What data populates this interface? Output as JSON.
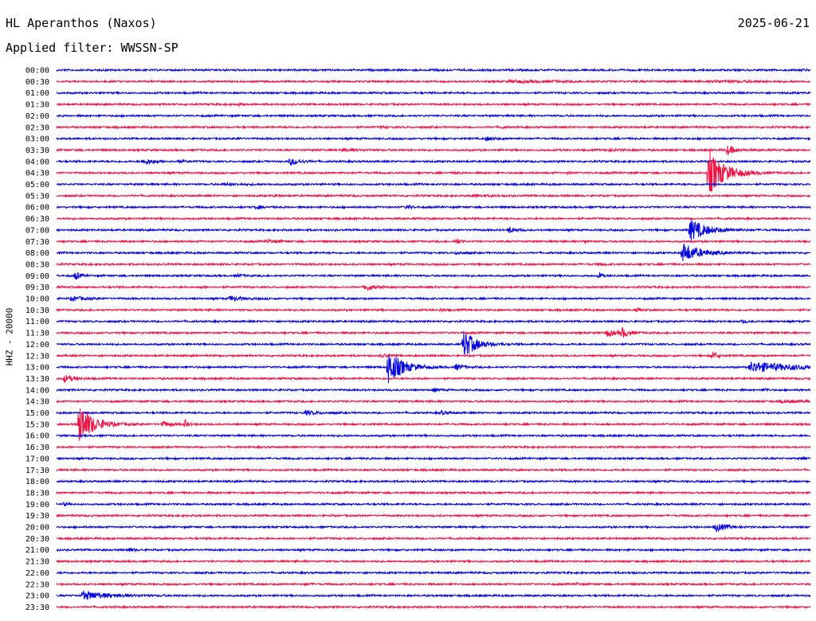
{
  "header": {
    "station": "HL Aperanthos (Naxos)",
    "date": "2025-06-21",
    "filter": "Applied filter: WWSSN-SP"
  },
  "chart_data": {
    "type": "line",
    "ylabel": "HHZ - 20000",
    "trace_colors": [
      "#0000dd",
      "#ee1144"
    ],
    "time_unit": "fraction of 30-minute trace",
    "rows": [
      {
        "label": "00:00",
        "events": [
          {
            "t": 0.5,
            "a": 0.25,
            "d": 0.008
          },
          {
            "t": 0.99,
            "a": 0.2,
            "d": 0.005
          }
        ]
      },
      {
        "label": "00:30",
        "events": [
          {
            "t": 0.6,
            "a": 0.15,
            "d": 0.08
          },
          {
            "t": 0.87,
            "a": 0.15,
            "d": 0.05
          }
        ]
      },
      {
        "label": "01:00",
        "events": []
      },
      {
        "label": "01:30",
        "events": [
          {
            "t": 0.24,
            "a": 0.2,
            "d": 0.006
          },
          {
            "t": 0.77,
            "a": 0.18,
            "d": 0.006
          }
        ]
      },
      {
        "label": "02:00",
        "events": []
      },
      {
        "label": "02:30",
        "events": [
          {
            "t": 0.43,
            "a": 0.15,
            "d": 0.006
          },
          {
            "t": 0.59,
            "a": 0.2,
            "d": 0.004
          }
        ]
      },
      {
        "label": "03:00",
        "events": [
          {
            "t": 0.57,
            "a": 0.3,
            "d": 0.01
          },
          {
            "t": 0.24,
            "a": 0.2,
            "d": 0.003
          }
        ]
      },
      {
        "label": "03:30",
        "events": [
          {
            "t": 0.38,
            "a": 0.2,
            "d": 0.02
          },
          {
            "t": 0.73,
            "a": 0.15,
            "d": 0.02
          },
          {
            "t": 0.89,
            "a": 0.8,
            "d": 0.01
          }
        ]
      },
      {
        "label": "04:00",
        "events": [
          {
            "t": 0.115,
            "a": 0.6,
            "d": 0.012
          },
          {
            "t": 0.31,
            "a": 0.6,
            "d": 0.012
          },
          {
            "t": 0.16,
            "a": 0.25,
            "d": 0.008
          }
        ]
      },
      {
        "label": "04:30",
        "events": [
          {
            "t": 0.865,
            "a": 4.0,
            "d": 0.02
          },
          {
            "t": 0.53,
            "a": 0.2,
            "d": 0.004
          },
          {
            "t": 0.68,
            "a": 0.2,
            "d": 0.004
          }
        ]
      },
      {
        "label": "05:00",
        "events": [
          {
            "t": 0.22,
            "a": 0.15,
            "d": 0.03
          }
        ]
      },
      {
        "label": "05:30",
        "events": [
          {
            "t": 0.29,
            "a": 0.2,
            "d": 0.004
          },
          {
            "t": 0.55,
            "a": 0.15,
            "d": 0.03
          }
        ]
      },
      {
        "label": "06:00",
        "events": [
          {
            "t": 0.265,
            "a": 0.35,
            "d": 0.006
          },
          {
            "t": 0.465,
            "a": 0.3,
            "d": 0.005
          }
        ]
      },
      {
        "label": "06:30",
        "events": []
      },
      {
        "label": "07:00",
        "events": [
          {
            "t": 0.84,
            "a": 2.0,
            "d": 0.02
          },
          {
            "t": 0.6,
            "a": 0.5,
            "d": 0.008
          }
        ]
      },
      {
        "label": "07:30",
        "events": [
          {
            "t": 0.28,
            "a": 0.3,
            "d": 0.01
          },
          {
            "t": 0.53,
            "a": 0.5,
            "d": 0.005
          },
          {
            "t": 0.7,
            "a": 0.3,
            "d": 0.004
          }
        ]
      },
      {
        "label": "08:00",
        "events": [
          {
            "t": 0.83,
            "a": 1.8,
            "d": 0.02
          },
          {
            "t": 0.53,
            "a": 0.3,
            "d": 0.008
          }
        ]
      },
      {
        "label": "08:30",
        "events": [
          {
            "t": 0.72,
            "a": 0.3,
            "d": 0.004
          }
        ]
      },
      {
        "label": "09:00",
        "events": [
          {
            "t": 0.025,
            "a": 0.8,
            "d": 0.005
          },
          {
            "t": 0.24,
            "a": 0.25,
            "d": 0.006
          },
          {
            "t": 0.72,
            "a": 0.5,
            "d": 0.004
          }
        ]
      },
      {
        "label": "09:30",
        "events": [
          {
            "t": 0.41,
            "a": 0.6,
            "d": 0.01
          },
          {
            "t": 0.19,
            "a": 0.2,
            "d": 0.005
          }
        ]
      },
      {
        "label": "10:00",
        "events": [
          {
            "t": 0.02,
            "a": 0.4,
            "d": 0.015
          },
          {
            "t": 0.23,
            "a": 0.5,
            "d": 0.012
          }
        ]
      },
      {
        "label": "10:30",
        "events": [
          {
            "t": 0.51,
            "a": 0.3,
            "d": 0.004
          },
          {
            "t": 0.77,
            "a": 0.3,
            "d": 0.004
          }
        ]
      },
      {
        "label": "11:00",
        "events": [
          {
            "t": 0.91,
            "a": 0.2,
            "d": 0.006
          }
        ]
      },
      {
        "label": "11:30",
        "events": [
          {
            "t": 0.73,
            "a": 0.6,
            "d": 0.012
          },
          {
            "t": 0.75,
            "a": 0.8,
            "d": 0.008
          }
        ]
      },
      {
        "label": "12:00",
        "events": [
          {
            "t": 0.54,
            "a": 2.5,
            "d": 0.015
          }
        ]
      },
      {
        "label": "12:30",
        "events": [
          {
            "t": 0.87,
            "a": 0.7,
            "d": 0.006
          },
          {
            "t": 0.43,
            "a": 0.25,
            "d": 0.01
          }
        ]
      },
      {
        "label": "13:00",
        "events": [
          {
            "t": 0.44,
            "a": 3.0,
            "d": 0.018
          },
          {
            "t": 0.53,
            "a": 0.5,
            "d": 0.008
          },
          {
            "t": 0.92,
            "a": 0.9,
            "d": 0.06
          }
        ]
      },
      {
        "label": "13:30",
        "events": [
          {
            "t": 0.01,
            "a": 0.6,
            "d": 0.012
          }
        ]
      },
      {
        "label": "14:00",
        "events": [
          {
            "t": 0.5,
            "a": 0.3,
            "d": 0.006
          },
          {
            "t": 0.94,
            "a": 0.2,
            "d": 0.004
          }
        ]
      },
      {
        "label": "14:30",
        "events": [
          {
            "t": 0.96,
            "a": 0.15,
            "d": 0.05
          }
        ]
      },
      {
        "label": "15:00",
        "events": [
          {
            "t": 0.33,
            "a": 0.3,
            "d": 0.02
          },
          {
            "t": 0.51,
            "a": 0.3,
            "d": 0.008
          }
        ]
      },
      {
        "label": "15:30",
        "events": [
          {
            "t": 0.03,
            "a": 3.5,
            "d": 0.018
          },
          {
            "t": 0.14,
            "a": 0.5,
            "d": 0.01
          },
          {
            "t": 0.17,
            "a": 0.8,
            "d": 0.004
          }
        ]
      },
      {
        "label": "16:00",
        "events": []
      },
      {
        "label": "16:30",
        "events": []
      },
      {
        "label": "17:00",
        "events": [
          {
            "t": 0.99,
            "a": 0.3,
            "d": 0.004
          }
        ]
      },
      {
        "label": "17:30",
        "events": []
      },
      {
        "label": "18:00",
        "events": []
      },
      {
        "label": "18:30",
        "events": []
      },
      {
        "label": "19:00",
        "events": [
          {
            "t": 0.01,
            "a": 0.3,
            "d": 0.004
          }
        ]
      },
      {
        "label": "19:30",
        "events": []
      },
      {
        "label": "20:00",
        "events": [
          {
            "t": 0.875,
            "a": 0.8,
            "d": 0.012
          }
        ]
      },
      {
        "label": "20:30",
        "events": []
      },
      {
        "label": "21:00",
        "events": [
          {
            "t": 0.095,
            "a": 0.35,
            "d": 0.006
          }
        ]
      },
      {
        "label": "21:30",
        "events": []
      },
      {
        "label": "22:00",
        "events": [
          {
            "t": 0.76,
            "a": 0.2,
            "d": 0.004
          }
        ]
      },
      {
        "label": "22:30",
        "events": [
          {
            "t": 0.33,
            "a": 0.2,
            "d": 0.005
          },
          {
            "t": 0.69,
            "a": 0.2,
            "d": 0.004
          }
        ]
      },
      {
        "label": "23:00",
        "events": [
          {
            "t": 0.035,
            "a": 0.8,
            "d": 0.03
          }
        ]
      },
      {
        "label": "23:30",
        "events": []
      }
    ]
  }
}
